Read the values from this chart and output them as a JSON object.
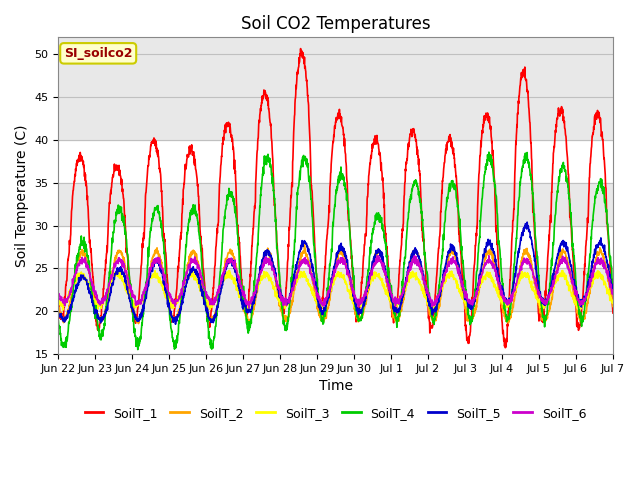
{
  "title": "Soil CO2 Temperatures",
  "xlabel": "Time",
  "ylabel": "Soil Temperature (C)",
  "ylim": [
    15,
    52
  ],
  "tick_labels": [
    "Jun 22",
    "Jun 23",
    "Jun 24",
    "Jun 25",
    "Jun 26",
    "Jun 27",
    "Jun 28",
    "Jun 29",
    "Jun 30",
    "Jul 1",
    "Jul 2",
    "Jul 3",
    "Jul 4",
    "Jul 5",
    "Jul 6",
    "Jul 7"
  ],
  "annotation": "SI_soilco2",
  "annotation_color": "#990000",
  "annotation_bg": "#FFFFCC",
  "annotation_edge": "#CCCC00",
  "series_colors": [
    "#FF0000",
    "#FFA500",
    "#FFFF00",
    "#00CC00",
    "#0000CC",
    "#CC00CC"
  ],
  "series_names": [
    "SoilT_1",
    "SoilT_2",
    "SoilT_3",
    "SoilT_4",
    "SoilT_5",
    "SoilT_6"
  ],
  "bg_color": "#FFFFFF",
  "plot_bg_color": "#FFFFFF",
  "band_color": "#E8E8E8",
  "title_fontsize": 12,
  "label_fontsize": 10,
  "tick_fontsize": 8,
  "legend_fontsize": 9
}
